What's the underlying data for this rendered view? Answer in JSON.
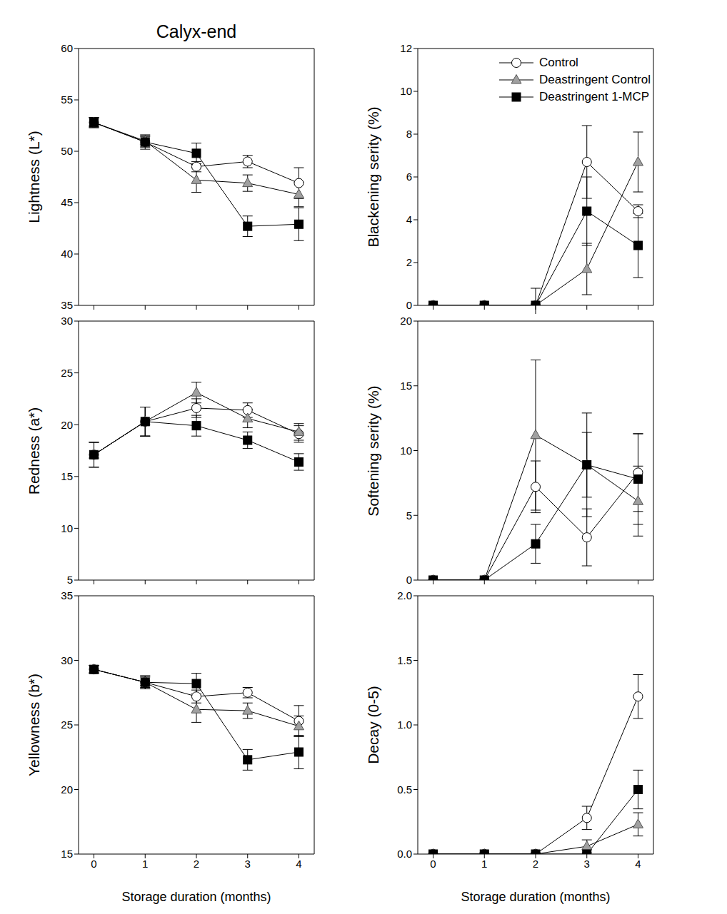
{
  "chart_data": [
    {
      "type": "line",
      "title": "Calyx-end",
      "y_label": "Lightness (L*)",
      "x": [
        0,
        1,
        2,
        3,
        4
      ],
      "xlim": [
        -0.3,
        4.3
      ],
      "xticks": [
        0,
        1,
        2,
        3,
        4
      ],
      "ylim": [
        35,
        60
      ],
      "yticks": [
        35,
        40,
        45,
        50,
        55,
        60
      ],
      "tick_labels": "y",
      "series": [
        {
          "name": "Control",
          "color": "#ffffff",
          "marker": "circle",
          "values": [
            52.8,
            50.9,
            48.5,
            49.0,
            46.9
          ],
          "errors": [
            0.5,
            0.5,
            0.5,
            0.6,
            1.5
          ]
        },
        {
          "name": "Deastringent Control",
          "color": "#a0a0a0",
          "marker": "triangle",
          "values": [
            52.8,
            51.0,
            47.2,
            46.9,
            45.8
          ],
          "errors": [
            0.5,
            0.5,
            1.2,
            0.8,
            1.2
          ]
        },
        {
          "name": "Deastringent 1-MCP",
          "color": "#000000",
          "marker": "square",
          "values": [
            52.8,
            50.9,
            49.8,
            42.7,
            42.9
          ],
          "errors": [
            0.4,
            0.7,
            1.0,
            1.0,
            1.6
          ]
        }
      ]
    },
    {
      "type": "line",
      "y_label": "Redness (a*)",
      "x": [
        0,
        1,
        2,
        3,
        4
      ],
      "xlim": [
        -0.3,
        4.3
      ],
      "xticks": [
        0,
        1,
        2,
        3,
        4
      ],
      "ylim": [
        5,
        30
      ],
      "yticks": [
        5,
        10,
        15,
        20,
        25,
        30
      ],
      "tick_labels": "y",
      "series": [
        {
          "name": "Control",
          "color": "#ffffff",
          "marker": "circle",
          "values": [
            17.1,
            20.3,
            21.6,
            21.4,
            19.1
          ],
          "errors": [
            1.2,
            1.4,
            0.9,
            0.7,
            0.8
          ]
        },
        {
          "name": "Deastringent Control",
          "color": "#a0a0a0",
          "marker": "triangle",
          "values": [
            17.1,
            20.3,
            23.1,
            20.6,
            19.3
          ],
          "errors": [
            1.2,
            1.4,
            1.0,
            0.9,
            0.8
          ]
        },
        {
          "name": "Deastringent 1-MCP",
          "color": "#000000",
          "marker": "square",
          "values": [
            17.1,
            20.3,
            19.9,
            18.5,
            16.4
          ],
          "errors": [
            1.2,
            1.4,
            1.0,
            0.8,
            0.8
          ]
        }
      ]
    },
    {
      "type": "line",
      "y_label": "Yellowness (b*)",
      "x_label": "Storage duration (months)",
      "x": [
        0,
        1,
        2,
        3,
        4
      ],
      "xlim": [
        -0.3,
        4.3
      ],
      "xticks": [
        0,
        1,
        2,
        3,
        4
      ],
      "ylim": [
        15,
        35
      ],
      "yticks": [
        15,
        20,
        25,
        30,
        35
      ],
      "series": [
        {
          "name": "Control",
          "color": "#ffffff",
          "marker": "circle",
          "values": [
            29.3,
            28.3,
            27.2,
            27.5,
            25.3
          ],
          "errors": [
            0.3,
            0.5,
            0.5,
            0.4,
            1.2
          ]
        },
        {
          "name": "Deastringent Control",
          "color": "#a0a0a0",
          "marker": "triangle",
          "values": [
            29.3,
            28.3,
            26.2,
            26.1,
            24.9
          ],
          "errors": [
            0.3,
            0.5,
            1.0,
            0.6,
            0.8
          ]
        },
        {
          "name": "Deastringent 1-MCP",
          "color": "#000000",
          "marker": "square",
          "values": [
            29.3,
            28.3,
            28.2,
            22.3,
            22.9
          ],
          "errors": [
            0.3,
            0.4,
            0.8,
            0.8,
            1.3
          ]
        }
      ]
    },
    {
      "type": "line",
      "y_label": "Blackening serity (%)",
      "legend": "upper right",
      "x": [
        0,
        1,
        2,
        3,
        4
      ],
      "xlim": [
        -0.3,
        4.3
      ],
      "xticks": [
        0,
        1,
        2,
        3,
        4
      ],
      "ylim": [
        0,
        12
      ],
      "yticks": [
        0,
        2,
        4,
        6,
        8,
        10,
        12
      ],
      "tick_labels": "y",
      "series": [
        {
          "name": "Control",
          "color": "#ffffff",
          "marker": "circle",
          "values": [
            0,
            0,
            0,
            6.7,
            4.4
          ],
          "errors": [
            0,
            0,
            0,
            1.7,
            0.3
          ]
        },
        {
          "name": "Deastringent Control",
          "color": "#a0a0a0",
          "marker": "triangle",
          "values": [
            0,
            0,
            0,
            1.7,
            6.7
          ],
          "errors": [
            0,
            0,
            0,
            1.2,
            1.4
          ]
        },
        {
          "name": "Deastringent 1-MCP",
          "color": "#000000",
          "marker": "square",
          "values": [
            0,
            0,
            0,
            4.4,
            2.8
          ],
          "errors": [
            0,
            0,
            0.8,
            1.6,
            1.5
          ]
        }
      ]
    },
    {
      "type": "line",
      "y_label": "Softening serity (%)",
      "x": [
        0,
        1,
        2,
        3,
        4
      ],
      "xlim": [
        -0.3,
        4.3
      ],
      "xticks": [
        0,
        1,
        2,
        3,
        4
      ],
      "ylim": [
        0,
        20
      ],
      "yticks": [
        0,
        5,
        10,
        15,
        20
      ],
      "tick_labels": "y",
      "series": [
        {
          "name": "Control",
          "color": "#ffffff",
          "marker": "circle",
          "values": [
            0,
            0,
            7.2,
            3.3,
            8.3
          ],
          "errors": [
            0,
            0,
            2.0,
            2.2,
            3.0
          ]
        },
        {
          "name": "Deastringent Control",
          "color": "#a0a0a0",
          "marker": "triangle",
          "values": [
            0,
            0,
            11.2,
            8.9,
            6.1
          ],
          "errors": [
            0,
            0,
            5.8,
            4.0,
            2.7
          ]
        },
        {
          "name": "Deastringent 1-MCP",
          "color": "#000000",
          "marker": "square",
          "values": [
            0,
            0,
            2.8,
            8.9,
            7.8
          ],
          "errors": [
            0,
            0,
            1.5,
            2.5,
            3.5
          ]
        }
      ]
    },
    {
      "type": "line",
      "y_label": "Decay (0-5)",
      "x_label": "Storage duration (months)",
      "x": [
        0,
        1,
        2,
        3,
        4
      ],
      "xlim": [
        -0.3,
        4.3
      ],
      "xticks": [
        0,
        1,
        2,
        3,
        4
      ],
      "ylim": [
        0,
        2
      ],
      "yticks": [
        {
          "value": 0,
          "label": "0.0"
        },
        {
          "value": 0.5,
          "label": "0.5"
        },
        {
          "value": 1,
          "label": "1.0"
        },
        {
          "value": 1.5,
          "label": "1.5"
        },
        {
          "value": 2,
          "label": "2.0"
        }
      ],
      "series": [
        {
          "name": "Control",
          "color": "#ffffff",
          "marker": "circle",
          "values": [
            0,
            0,
            0,
            0.28,
            1.22
          ],
          "errors": [
            0,
            0,
            0,
            0.09,
            0.17
          ]
        },
        {
          "name": "Deastringent Control",
          "color": "#a0a0a0",
          "marker": "triangle",
          "values": [
            0,
            0,
            0,
            0.06,
            0.23
          ],
          "errors": [
            0,
            0,
            0,
            0.05,
            0.09
          ]
        },
        {
          "name": "Deastringent 1-MCP",
          "color": "#000000",
          "marker": "square",
          "values": [
            0,
            0,
            0,
            0,
            0.5
          ],
          "errors": [
            0,
            0,
            0,
            0,
            0.15
          ]
        }
      ]
    }
  ]
}
